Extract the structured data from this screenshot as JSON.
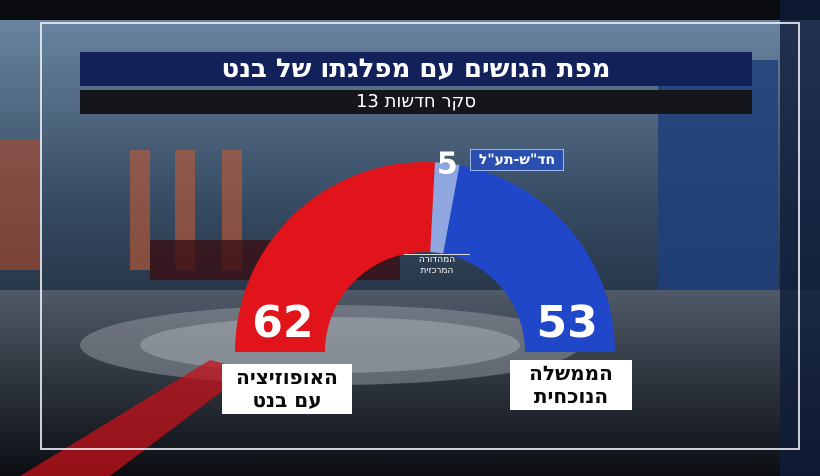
{
  "title": "מפת הגושים עם מפלגתו של בנט",
  "subtitle": "סקר חדשות 13",
  "channel_logo": {
    "line1": "המהדורה",
    "line2": "המרכזית"
  },
  "chart_data": {
    "type": "pie",
    "variant": "half-donut",
    "total": 120,
    "segments": [
      {
        "value": 62,
        "label_lines": [
          "האופוזיציה",
          "עם בנט"
        ],
        "color": "#e2141b"
      },
      {
        "value": 5,
        "label": "חד\"ש-תע\"ל",
        "color": "#8fa6e0"
      },
      {
        "value": 53,
        "label_lines": [
          "הממשלה",
          "הנוכחית"
        ],
        "color": "#1f47c8"
      }
    ]
  },
  "colors": {
    "title_bar": "#12215a",
    "subtitle_bar": "#15161c",
    "tag_bg": "#2a4fae"
  }
}
